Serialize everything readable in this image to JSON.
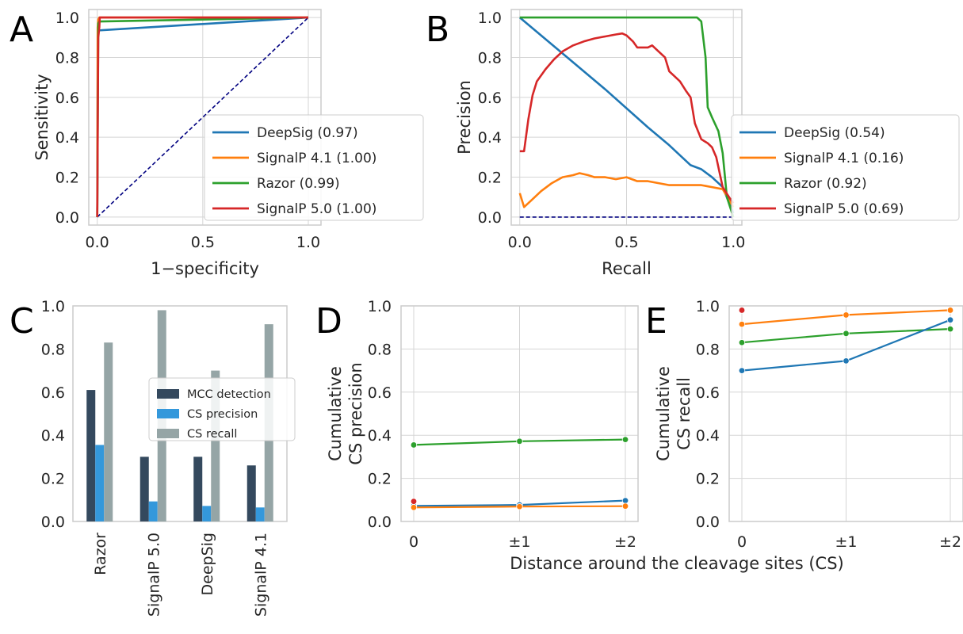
{
  "colors": {
    "deepsig": "#1f77b4",
    "signalp41": "#ff7f0e",
    "razor": "#2ca02c",
    "signalp50": "#d62728",
    "diag": "#000080",
    "mcc": "#34495e",
    "cs_precision": "#3498db",
    "cs_recall": "#95a5a6",
    "grid": "#d5d5d5",
    "frame": "#cccccc"
  },
  "chart_data": [
    {
      "panel": "A",
      "type": "line",
      "xlabel": "1−specificity",
      "ylabel": "Sensitivity",
      "xlim": [
        -0.04,
        1.06
      ],
      "ylim": [
        -0.04,
        1.04
      ],
      "xticks": [
        0.0,
        0.5,
        1.0
      ],
      "xtick_labels": [
        "0.0",
        "0.5",
        "1.0"
      ],
      "yticks": [
        0.0,
        0.2,
        0.4,
        0.6,
        0.8,
        1.0
      ],
      "ytick_labels": [
        "0.0",
        "0.2",
        "0.4",
        "0.6",
        "0.8",
        "1.0"
      ],
      "grid": true,
      "legend_position": "lower-right",
      "series": [
        {
          "name": "DeepSig (0.97)",
          "color_key": "deepsig",
          "x": [
            0,
            0.003,
            1.0
          ],
          "y": [
            0,
            0.935,
            1.0
          ]
        },
        {
          "name": "SignalP 4.1 (1.00)",
          "color_key": "signalp41",
          "x": [
            0,
            0.002,
            0.005,
            0.01,
            0.02,
            1.0
          ],
          "y": [
            0,
            0.95,
            0.99,
            1.0,
            1.0,
            1.0
          ]
        },
        {
          "name": "Razor (0.99)",
          "color_key": "razor",
          "x": [
            0,
            0.005,
            0.01,
            1.0
          ],
          "y": [
            0,
            0.97,
            0.98,
            1.0
          ]
        },
        {
          "name": "SignalP 5.0 (1.00)",
          "color_key": "signalp50",
          "x": [
            0,
            0.005,
            0.01,
            0.012,
            1.0
          ],
          "y": [
            0,
            0.9,
            0.95,
            1.0,
            1.0
          ]
        }
      ],
      "reference_line": {
        "x": [
          0,
          1
        ],
        "y": [
          0,
          1
        ],
        "style": "dashed",
        "color_key": "diag"
      }
    },
    {
      "panel": "B",
      "type": "line",
      "xlabel": "Recall",
      "ylabel": "Precision",
      "xlim": [
        -0.04,
        1.04
      ],
      "ylim": [
        -0.04,
        1.04
      ],
      "xticks": [
        0.0,
        0.5,
        1.0
      ],
      "xtick_labels": [
        "0.0",
        "0.5",
        "1.0"
      ],
      "yticks": [
        0.0,
        0.2,
        0.4,
        0.6,
        0.8,
        1.0
      ],
      "ytick_labels": [
        "0.0",
        "0.2",
        "0.4",
        "0.6",
        "0.8",
        "1.0"
      ],
      "grid": true,
      "legend_position": "lower-right",
      "series": [
        {
          "name": "DeepSig (0.54)",
          "color_key": "deepsig",
          "x": [
            0.0,
            0.2,
            0.4,
            0.6,
            0.7,
            0.75,
            0.8,
            0.85,
            0.9,
            0.95,
            1.0
          ],
          "y": [
            1.0,
            0.82,
            0.64,
            0.45,
            0.36,
            0.31,
            0.26,
            0.24,
            0.2,
            0.15,
            0.02
          ]
        },
        {
          "name": "SignalP 4.1 (0.16)",
          "color_key": "signalp41",
          "x": [
            0.0,
            0.02,
            0.05,
            0.1,
            0.15,
            0.2,
            0.25,
            0.28,
            0.32,
            0.35,
            0.4,
            0.45,
            0.5,
            0.55,
            0.6,
            0.65,
            0.7,
            0.75,
            0.8,
            0.85,
            0.9,
            0.95,
            1.0
          ],
          "y": [
            0.12,
            0.05,
            0.08,
            0.13,
            0.17,
            0.2,
            0.21,
            0.22,
            0.21,
            0.2,
            0.2,
            0.19,
            0.2,
            0.18,
            0.18,
            0.17,
            0.16,
            0.16,
            0.16,
            0.16,
            0.15,
            0.14,
            0.05
          ]
        },
        {
          "name": "Razor (0.92)",
          "color_key": "razor",
          "x": [
            0.0,
            0.3,
            0.6,
            0.83,
            0.85,
            0.87,
            0.88,
            0.9,
            0.93,
            0.95,
            0.97,
            1.0
          ],
          "y": [
            1.0,
            1.0,
            1.0,
            1.0,
            0.98,
            0.8,
            0.55,
            0.5,
            0.43,
            0.32,
            0.1,
            0.0
          ]
        },
        {
          "name": "SignalP 5.0 (0.69)",
          "color_key": "signalp50",
          "x": [
            0.0,
            0.02,
            0.04,
            0.06,
            0.08,
            0.12,
            0.16,
            0.2,
            0.25,
            0.3,
            0.35,
            0.4,
            0.45,
            0.48,
            0.5,
            0.53,
            0.55,
            0.6,
            0.62,
            0.65,
            0.68,
            0.7,
            0.72,
            0.75,
            0.78,
            0.8,
            0.82,
            0.85,
            0.88,
            0.9,
            0.92,
            0.95,
            0.98,
            1.0
          ],
          "y": [
            0.33,
            0.33,
            0.49,
            0.61,
            0.68,
            0.74,
            0.79,
            0.83,
            0.86,
            0.88,
            0.895,
            0.905,
            0.915,
            0.92,
            0.91,
            0.88,
            0.85,
            0.85,
            0.86,
            0.83,
            0.8,
            0.73,
            0.71,
            0.68,
            0.63,
            0.6,
            0.47,
            0.39,
            0.37,
            0.35,
            0.3,
            0.15,
            0.1,
            0.07
          ]
        }
      ],
      "reference_line": {
        "x": [
          0,
          1
        ],
        "y": [
          0,
          0
        ],
        "style": "dashed",
        "color_key": "diag"
      }
    },
    {
      "panel": "C",
      "type": "bar",
      "categories": [
        "Razor",
        "SignalP 5.0",
        "DeepSig",
        "SignalP 4.1"
      ],
      "ylim": [
        0,
        1.0
      ],
      "yticks": [
        0.0,
        0.2,
        0.4,
        0.6,
        0.8,
        1.0
      ],
      "ytick_labels": [
        "0.0",
        "0.2",
        "0.4",
        "0.6",
        "0.8",
        "1.0"
      ],
      "grid": false,
      "legend_position": "center-right",
      "series": [
        {
          "name": "MCC detection",
          "color_key": "mcc",
          "values": [
            0.61,
            0.3,
            0.3,
            0.26
          ]
        },
        {
          "name": "CS precision",
          "color_key": "cs_precision",
          "values": [
            0.355,
            0.093,
            0.072,
            0.065
          ]
        },
        {
          "name": "CS recall",
          "color_key": "cs_recall",
          "values": [
            0.83,
            0.98,
            0.7,
            0.915
          ]
        }
      ]
    },
    {
      "panel": "D",
      "type": "line",
      "categories": [
        "0",
        "±1",
        "±2"
      ],
      "ylabel_lines": [
        "Cumulative",
        "CS precision"
      ],
      "ylim": [
        0.0,
        1.0
      ],
      "yticks": [
        0.0,
        0.2,
        0.4,
        0.6,
        0.8,
        1.0
      ],
      "ytick_labels": [
        "0.0",
        "0.2",
        "0.4",
        "0.6",
        "0.8",
        "1.0"
      ],
      "grid": true,
      "series": [
        {
          "color_key": "razor",
          "values": [
            0.355,
            0.372,
            0.38
          ]
        },
        {
          "color_key": "deepsig",
          "values": [
            0.072,
            0.077,
            0.097
          ]
        },
        {
          "color_key": "signalp41",
          "values": [
            0.065,
            0.069,
            0.071
          ]
        },
        {
          "color_key": "signalp50",
          "values": [
            0.093,
            null,
            null
          ]
        }
      ]
    },
    {
      "panel": "E",
      "type": "line",
      "categories": [
        "0",
        "±1",
        "±2"
      ],
      "ylabel_lines": [
        "Cumulative",
        "CS recall"
      ],
      "ylim": [
        0.0,
        1.0
      ],
      "yticks": [
        0.0,
        0.2,
        0.4,
        0.6,
        0.8,
        1.0
      ],
      "ytick_labels": [
        "0.0",
        "0.2",
        "0.4",
        "0.6",
        "0.8",
        "1.0"
      ],
      "grid": true,
      "series": [
        {
          "color_key": "signalp41",
          "values": [
            0.915,
            0.958,
            0.98
          ]
        },
        {
          "color_key": "razor",
          "values": [
            0.83,
            0.872,
            0.893
          ]
        },
        {
          "color_key": "deepsig",
          "values": [
            0.7,
            0.745,
            0.935
          ]
        },
        {
          "color_key": "signalp50",
          "values": [
            0.98,
            null,
            null
          ]
        }
      ]
    }
  ],
  "shared_xlabel_DE": "Distance around the cleavage sites (CS)",
  "panel_letters": [
    "A",
    "B",
    "C",
    "D",
    "E"
  ]
}
